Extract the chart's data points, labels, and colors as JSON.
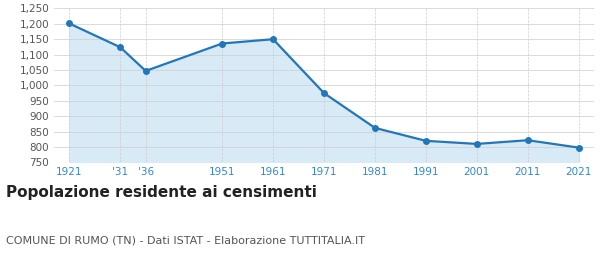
{
  "years": [
    1921,
    1931,
    1936,
    1951,
    1961,
    1971,
    1981,
    1991,
    2001,
    2011,
    2021
  ],
  "population": [
    1201,
    1124,
    1047,
    1136,
    1150,
    975,
    862,
    820,
    810,
    822,
    798
  ],
  "x_tick_labels": [
    "1921",
    "'31",
    "'36",
    "1951",
    "1961",
    "1971",
    "1981",
    "1991",
    "2001",
    "2011",
    "2021"
  ],
  "ylim": [
    750,
    1250
  ],
  "yticks": [
    750,
    800,
    850,
    900,
    950,
    1000,
    1050,
    1100,
    1150,
    1200,
    1250
  ],
  "line_color": "#2277bb",
  "fill_color": "#d8eaf6",
  "marker": "o",
  "marker_size": 4,
  "line_width": 1.6,
  "grid_color": "#cccccc",
  "title": "Popolazione residente ai censimenti",
  "subtitle": "COMUNE DI RUMO (TN) - Dati ISTAT - Elaborazione TUTTITALIA.IT",
  "title_fontsize": 11,
  "subtitle_fontsize": 8,
  "tick_fontsize": 7.5,
  "background_color": "#ffffff",
  "x_tick_color": "#3388cc",
  "y_tick_color": "#555555"
}
